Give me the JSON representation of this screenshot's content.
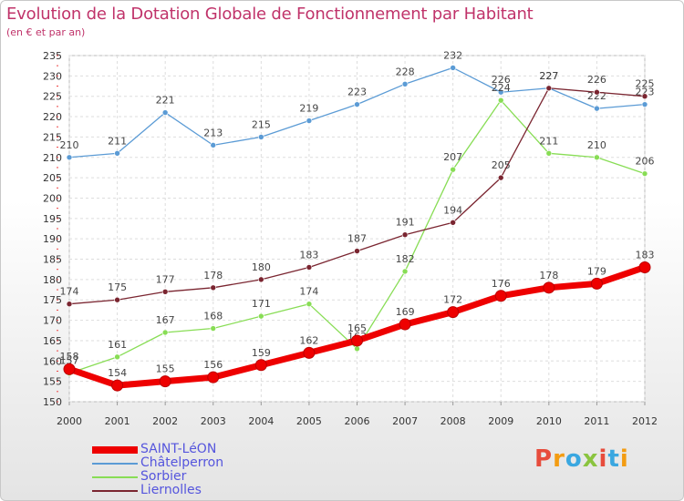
{
  "chart_data": {
    "type": "line",
    "title": "Evolution de la Dotation Globale de Fonctionnement par Habitant",
    "subtitle": "(en € et par an)",
    "x": [
      "2000",
      "2001",
      "2002",
      "2003",
      "2004",
      "2005",
      "2006",
      "2007",
      "2008",
      "2009",
      "2010",
      "2011",
      "2012"
    ],
    "ylim": [
      150,
      235
    ],
    "yticks": [
      150,
      155,
      160,
      165,
      170,
      175,
      180,
      185,
      190,
      195,
      200,
      205,
      210,
      215,
      220,
      225,
      230,
      235
    ],
    "grid": true,
    "legend_position": "bottom-left",
    "series": [
      {
        "name": "Châtelperron",
        "color": "#5b9bd5",
        "values": [
          210,
          211,
          221,
          213,
          215,
          219,
          223,
          228,
          232,
          226,
          227,
          222,
          223
        ]
      },
      {
        "name": "Sorbier",
        "color": "#88dd55",
        "values": [
          157,
          161,
          167,
          168,
          171,
          174,
          163,
          182,
          207,
          224,
          211,
          210,
          206
        ]
      },
      {
        "name": "Liernolles",
        "color": "#7a2530",
        "values": [
          174,
          175,
          177,
          178,
          180,
          183,
          187,
          191,
          194,
          205,
          227,
          226,
          225
        ]
      },
      {
        "name": "SAINT-LéON",
        "color": "#ee0000",
        "values": [
          158,
          154,
          155,
          156,
          159,
          162,
          165,
          169,
          172,
          176,
          178,
          179,
          183
        ]
      }
    ]
  },
  "legend": [
    {
      "label": "SAINT-LéON",
      "color": "#ee0000"
    },
    {
      "label": "Châtelperron",
      "color": "#5b9bd5"
    },
    {
      "label": "Sorbier",
      "color": "#88dd55"
    },
    {
      "label": "Liernolles",
      "color": "#7a2530"
    }
  ],
  "logo": {
    "text": "Proxiti"
  }
}
